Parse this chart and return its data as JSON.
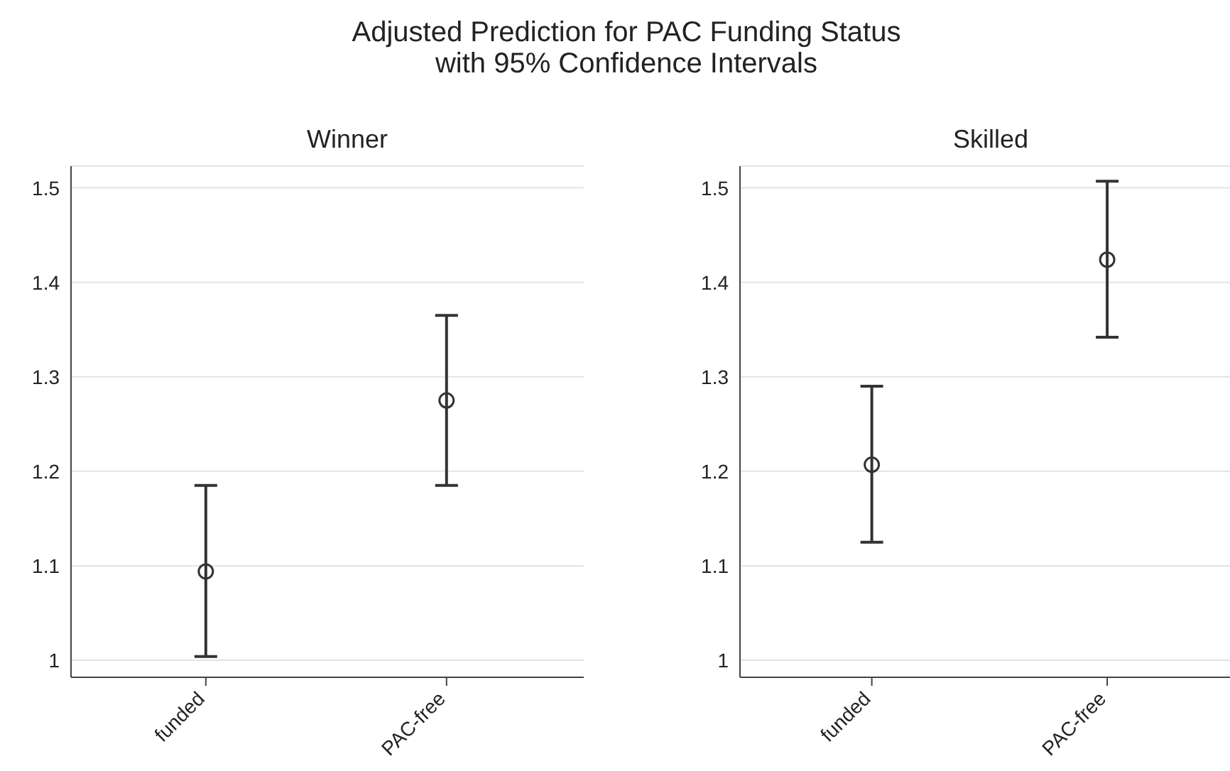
{
  "chart_data": [
    {
      "type": "scatter",
      "title": "Adjusted Prediction for PAC Funding Status\nwith 95% Confidence Intervals",
      "subtitle": "Winner",
      "categories": [
        "funded",
        "PAC-free"
      ],
      "values": [
        1.094,
        1.275
      ],
      "errors": [
        [
          1.004,
          1.185
        ],
        [
          1.185,
          1.365
        ]
      ],
      "color": "#333333",
      "marker": "circle",
      "ylim": [
        0.982,
        1.523
      ],
      "yticks": [
        1,
        1.1,
        1.2,
        1.3,
        1.4,
        1.5
      ],
      "grid": "y",
      "legend": false
    },
    {
      "type": "scatter",
      "subtitle": "Skilled",
      "categories": [
        "funded",
        "PAC-free"
      ],
      "values": [
        1.207,
        1.424
      ],
      "errors": [
        [
          1.125,
          1.29
        ],
        [
          1.342,
          1.507
        ]
      ],
      "color": "#333333",
      "marker": "circle",
      "ylim": [
        0.982,
        1.523
      ],
      "yticks": [
        1,
        1.1,
        1.2,
        1.3,
        1.4,
        1.5
      ],
      "grid": "y",
      "legend": false
    }
  ]
}
